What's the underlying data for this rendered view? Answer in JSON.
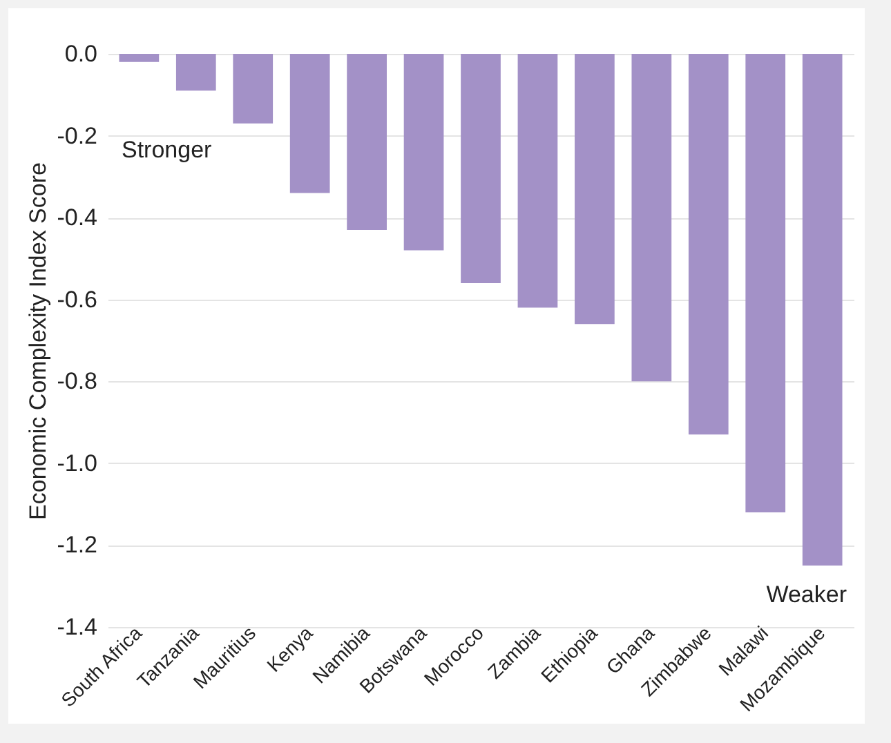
{
  "chart_data": {
    "type": "bar",
    "ylabel": "Economic Complexity Index Score",
    "categories": [
      "South Africa",
      "Tanzania",
      "Mauritius",
      "Kenya",
      "Namibia",
      "Botswana",
      "Morocco",
      "Zambia",
      "Ethiopia",
      "Ghana",
      "Zimbabwe",
      "Malawi",
      "Mozambique"
    ],
    "values": [
      -0.02,
      -0.09,
      -0.17,
      -0.34,
      -0.43,
      -0.48,
      -0.56,
      -0.62,
      -0.66,
      -0.8,
      -0.93,
      -1.12,
      -1.25
    ],
    "color": "#a391c7",
    "ylim": [
      -1.4,
      0
    ],
    "yticks": [
      {
        "value": 0,
        "label": "0.0"
      },
      -0.2,
      -0.4,
      -0.6,
      -0.8,
      {
        "value": -1,
        "label": "-1.0"
      },
      -1.2,
      -1.4
    ],
    "grid": "y",
    "annotations": [
      "Stronger",
      "Weaker"
    ]
  }
}
